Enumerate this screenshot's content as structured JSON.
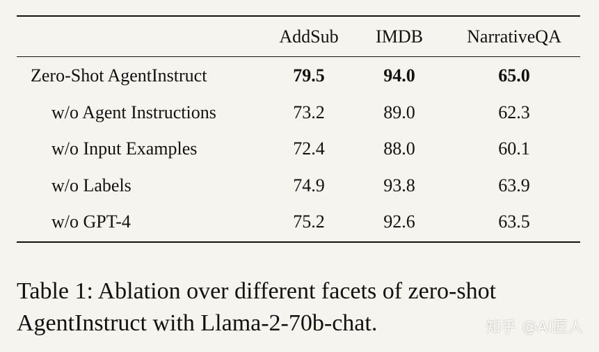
{
  "table": {
    "columns": [
      "",
      "AddSub",
      "IMDB",
      "NarrativeQA"
    ],
    "rows": [
      {
        "label": "Zero-Shot AgentInstruct",
        "values": [
          "79.5",
          "94.0",
          "65.0"
        ],
        "bold": true,
        "indent": false
      },
      {
        "label": "w/o Agent Instructions",
        "values": [
          "73.2",
          "89.0",
          "62.3"
        ],
        "bold": false,
        "indent": true
      },
      {
        "label": "w/o Input Examples",
        "values": [
          "72.4",
          "88.0",
          "60.1"
        ],
        "bold": false,
        "indent": true
      },
      {
        "label": "w/o Labels",
        "values": [
          "74.9",
          "93.8",
          "63.9"
        ],
        "bold": false,
        "indent": true
      },
      {
        "label": "w/o GPT-4",
        "values": [
          "75.2",
          "92.6",
          "63.5"
        ],
        "bold": false,
        "indent": true
      }
    ]
  },
  "caption": {
    "line1": "Table 1: Ablation over different facets of zero-shot",
    "line2": "AgentInstruct with Llama-2-70b-chat."
  },
  "watermark": "知乎 @AI匠人",
  "colors": {
    "background": "#f5f4ee",
    "text": "#111111"
  }
}
